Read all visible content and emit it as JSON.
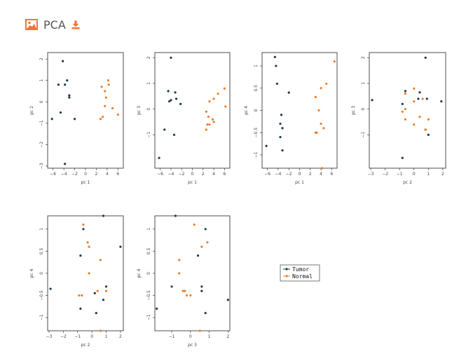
{
  "header": {
    "title": "PCA",
    "image_icon": "image-icon",
    "download_icon": "download-icon",
    "accent_color": "#e8793a"
  },
  "colors": {
    "Tumor": "#1a3a4a",
    "Normal": "#ef7d2a"
  },
  "legend": [
    "Tumor",
    "Normal"
  ],
  "chart_data": [
    {
      "type": "scatter",
      "xlabel": "pc 1",
      "ylabel": "pc 2",
      "xlim": [
        -7,
        7
      ],
      "ylim": [
        -3.1,
        2.3
      ],
      "xticks": [
        -6,
        -4,
        -2,
        0,
        2,
        4,
        6
      ],
      "yticks": [
        -3,
        -2,
        -1,
        0,
        1,
        2
      ],
      "series": [
        {
          "name": "Tumor",
          "points": [
            [
              -4.2,
              1.9
            ],
            [
              -5.0,
              0.8
            ],
            [
              -3.8,
              0.8
            ],
            [
              -3.4,
              1.0
            ],
            [
              -3.0,
              0.3
            ],
            [
              -3.0,
              0.2
            ],
            [
              -4.6,
              -0.5
            ],
            [
              -2.0,
              -0.8
            ],
            [
              -6.2,
              -0.8
            ],
            [
              -3.8,
              -2.9
            ]
          ]
        },
        {
          "name": "Normal",
          "points": [
            [
              4.2,
              1.0
            ],
            [
              3.0,
              0.7
            ],
            [
              3.6,
              0.5
            ],
            [
              4.3,
              0.8
            ],
            [
              3.8,
              0.2
            ],
            [
              3.6,
              -0.2
            ],
            [
              5.0,
              -0.3
            ],
            [
              3.2,
              -0.7
            ],
            [
              2.8,
              -0.8
            ],
            [
              6.0,
              -0.6
            ]
          ]
        }
      ]
    },
    {
      "type": "scatter",
      "xlabel": "pc 1",
      "ylabel": "pc 3",
      "xlim": [
        -7,
        7
      ],
      "ylim": [
        -2.3,
        2.2
      ],
      "xticks": [
        -6,
        -4,
        -2,
        0,
        2,
        4,
        6
      ],
      "yticks": [
        -1,
        0,
        1,
        2
      ],
      "series": [
        {
          "name": "Tumor",
          "points": [
            [
              -4.0,
              2.0
            ],
            [
              -4.5,
              0.7
            ],
            [
              -3.2,
              0.65
            ],
            [
              -4.0,
              0.35
            ],
            [
              -4.3,
              0.3
            ],
            [
              -3.0,
              0.4
            ],
            [
              -2.2,
              0.2
            ],
            [
              -5.2,
              -0.8
            ],
            [
              -3.4,
              -1.0
            ],
            [
              -6.2,
              -1.9
            ]
          ]
        },
        {
          "name": "Normal",
          "points": [
            [
              6.0,
              0.8
            ],
            [
              4.8,
              0.6
            ],
            [
              4.0,
              0.4
            ],
            [
              3.2,
              0.3
            ],
            [
              2.6,
              -0.1
            ],
            [
              3.0,
              -0.3
            ],
            [
              3.8,
              -0.4
            ],
            [
              4.0,
              -0.5
            ],
            [
              2.8,
              -0.6
            ],
            [
              2.6,
              -0.8
            ],
            [
              3.2,
              -0.6
            ],
            [
              6.2,
              0.1
            ]
          ]
        }
      ]
    },
    {
      "type": "scatter",
      "xlabel": "pc 1",
      "ylabel": "pc 4",
      "xlim": [
        -7,
        7
      ],
      "ylim": [
        -1.3,
        1.3
      ],
      "xticks": [
        -6,
        -4,
        -2,
        0,
        2,
        4,
        6
      ],
      "yticks": [
        -1,
        -0.5,
        0,
        0.5,
        1
      ],
      "series": [
        {
          "name": "Tumor",
          "points": [
            [
              -4.6,
              1.2
            ],
            [
              -4.4,
              1.0
            ],
            [
              -4.2,
              0.6
            ],
            [
              -2.0,
              0.4
            ],
            [
              -3.4,
              -0.1
            ],
            [
              -3.6,
              -0.3
            ],
            [
              -3.2,
              -0.4
            ],
            [
              -3.6,
              -0.6
            ],
            [
              -3.2,
              -0.9
            ],
            [
              -6.2,
              -0.8
            ]
          ]
        },
        {
          "name": "Normal",
          "points": [
            [
              6.5,
              1.1
            ],
            [
              5.0,
              0.6
            ],
            [
              4.0,
              0.5
            ],
            [
              3.0,
              0.3
            ],
            [
              3.6,
              0.0
            ],
            [
              4.0,
              -0.3
            ],
            [
              4.5,
              -0.4
            ],
            [
              3.0,
              -0.5
            ],
            [
              3.2,
              -0.5
            ],
            [
              4.2,
              -1.3
            ]
          ]
        }
      ]
    },
    {
      "type": "scatter",
      "xlabel": "pc 2",
      "ylabel": "pc 3",
      "xlim": [
        -3.1,
        2.2
      ],
      "ylim": [
        -2.3,
        2.2
      ],
      "xticks": [
        -3,
        -2,
        -1,
        0,
        1,
        2
      ],
      "yticks": [
        -1,
        0,
        1,
        2
      ],
      "series": [
        {
          "name": "Tumor",
          "points": [
            [
              0.8,
              2.0
            ],
            [
              -0.6,
              0.7
            ],
            [
              0.4,
              0.65
            ],
            [
              0.3,
              0.4
            ],
            [
              -0.8,
              0.2
            ],
            [
              0.9,
              0.4
            ],
            [
              1.9,
              0.3
            ],
            [
              -2.9,
              0.35
            ],
            [
              0.8,
              -0.8
            ],
            [
              1.0,
              -1.0
            ],
            [
              -0.8,
              -1.9
            ]
          ]
        },
        {
          "name": "Normal",
          "points": [
            [
              0.0,
              0.8
            ],
            [
              -0.6,
              0.6
            ],
            [
              0.6,
              0.4
            ],
            [
              0.0,
              0.3
            ],
            [
              -0.6,
              0.0
            ],
            [
              -0.8,
              -0.1
            ],
            [
              0.4,
              -0.3
            ],
            [
              -0.6,
              -0.4
            ],
            [
              1.0,
              -0.4
            ],
            [
              0.0,
              -0.6
            ],
            [
              0.8,
              -0.8
            ]
          ]
        }
      ]
    },
    {
      "type": "scatter",
      "xlabel": "pc 2",
      "ylabel": "pc 4",
      "xlim": [
        -3.1,
        2.2
      ],
      "ylim": [
        -1.3,
        1.3
      ],
      "xticks": [
        -3,
        -2,
        -1,
        0,
        1,
        2
      ],
      "yticks": [
        -1,
        -0.5,
        0,
        0.5,
        1
      ],
      "series": [
        {
          "name": "Tumor",
          "points": [
            [
              0.8,
              1.3
            ],
            [
              -0.6,
              1.0
            ],
            [
              -0.8,
              0.4
            ],
            [
              2.0,
              0.6
            ],
            [
              1.0,
              -0.3
            ],
            [
              0.8,
              -0.6
            ],
            [
              0.2,
              -0.45
            ],
            [
              -0.8,
              -0.8
            ],
            [
              0.3,
              -0.9
            ],
            [
              -2.9,
              -0.35
            ]
          ]
        },
        {
          "name": "Normal",
          "points": [
            [
              -0.6,
              1.1
            ],
            [
              -0.3,
              0.7
            ],
            [
              -0.2,
              0.6
            ],
            [
              0.6,
              0.3
            ],
            [
              -0.2,
              0.0
            ],
            [
              0.4,
              -0.4
            ],
            [
              1.0,
              -0.4
            ],
            [
              -0.9,
              -0.5
            ],
            [
              -0.7,
              -0.5
            ],
            [
              0.6,
              -1.3
            ]
          ]
        }
      ]
    },
    {
      "type": "scatter",
      "xlabel": "pc 3",
      "ylabel": "pc 4",
      "xlim": [
        -1.9,
        2.1
      ],
      "ylim": [
        -1.3,
        1.3
      ],
      "xticks": [
        -1,
        0,
        1,
        2
      ],
      "yticks": [
        -1,
        -0.5,
        0,
        0.5,
        1
      ],
      "series": [
        {
          "name": "Tumor",
          "points": [
            [
              -0.8,
              1.3
            ],
            [
              0.8,
              1.0
            ],
            [
              0.4,
              0.4
            ],
            [
              -1.0,
              -0.3
            ],
            [
              0.6,
              -0.4
            ],
            [
              0.6,
              -0.3
            ],
            [
              0.8,
              -0.9
            ],
            [
              2.0,
              -0.6
            ],
            [
              -1.8,
              -0.8
            ]
          ]
        },
        {
          "name": "Normal",
          "points": [
            [
              0.2,
              1.1
            ],
            [
              0.9,
              0.7
            ],
            [
              0.6,
              0.6
            ],
            [
              -0.6,
              0.3
            ],
            [
              -0.6,
              0.0
            ],
            [
              -0.4,
              -0.4
            ],
            [
              -0.3,
              -0.4
            ],
            [
              -0.2,
              -0.5
            ],
            [
              0.0,
              -0.5
            ],
            [
              0.5,
              -1.3
            ]
          ]
        }
      ]
    }
  ]
}
